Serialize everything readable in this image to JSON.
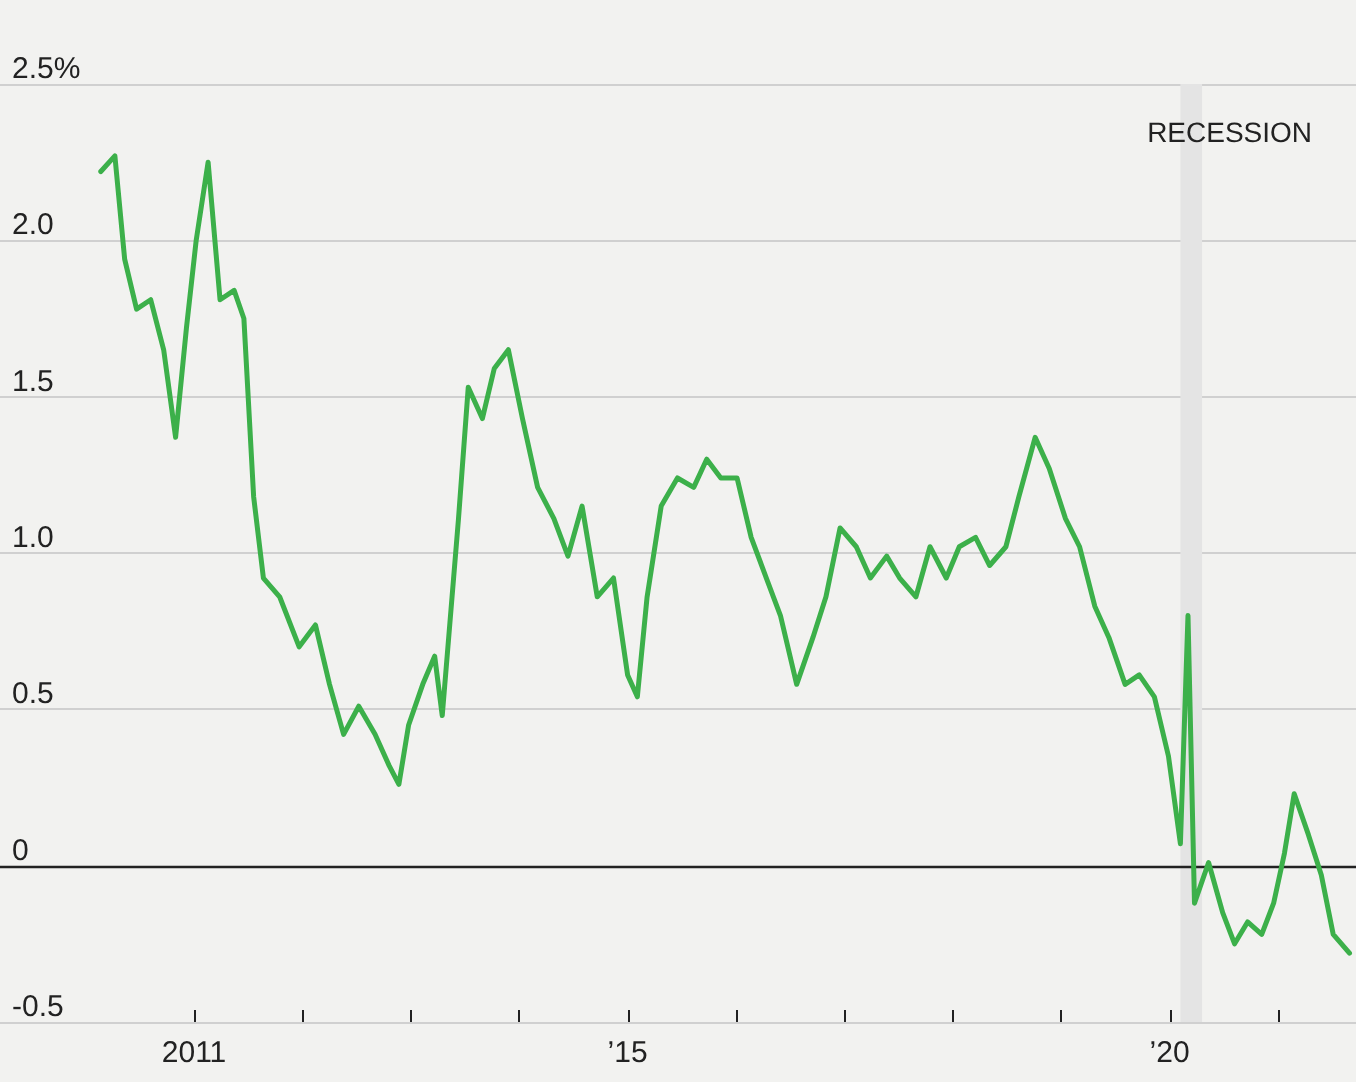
{
  "chart_data": {
    "type": "line",
    "x": [
      2010.14,
      2010.27,
      2010.36,
      2010.47,
      2010.6,
      2010.72,
      2010.83,
      2010.93,
      2011.02,
      2011.13,
      2011.24,
      2011.37,
      2011.46,
      2011.55,
      2011.64,
      2011.79,
      2011.97,
      2012.12,
      2012.25,
      2012.38,
      2012.52,
      2012.67,
      2012.8,
      2012.89,
      2012.98,
      2013.11,
      2013.22,
      2013.29,
      2013.44,
      2013.53,
      2013.66,
      2013.77,
      2013.9,
      2014.03,
      2014.17,
      2014.32,
      2014.45,
      2014.58,
      2014.72,
      2014.87,
      2015.0,
      2015.09,
      2015.18,
      2015.31,
      2015.46,
      2015.61,
      2015.73,
      2015.86,
      2016.01,
      2016.14,
      2016.28,
      2016.41,
      2016.56,
      2016.71,
      2016.83,
      2016.96,
      2017.11,
      2017.24,
      2017.39,
      2017.51,
      2017.66,
      2017.79,
      2017.94,
      2018.06,
      2018.21,
      2018.34,
      2018.49,
      2018.61,
      2018.76,
      2018.89,
      2019.04,
      2019.17,
      2019.31,
      2019.44,
      2019.59,
      2019.72,
      2019.86,
      2019.99,
      2020.1,
      2020.17,
      2020.23,
      2020.36,
      2020.49,
      2020.6,
      2020.72,
      2020.85,
      2020.96,
      2021.06,
      2021.15,
      2021.28,
      2021.4,
      2021.51,
      2021.66
    ],
    "series": [
      {
        "color": "#3cb04a",
        "values": [
          2.22,
          2.27,
          1.94,
          1.78,
          1.81,
          1.65,
          1.37,
          1.72,
          2.0,
          2.25,
          1.81,
          1.84,
          1.75,
          1.18,
          0.92,
          0.86,
          0.7,
          0.77,
          0.58,
          0.42,
          0.51,
          0.42,
          0.32,
          0.26,
          0.45,
          0.58,
          0.67,
          0.48,
          1.11,
          1.53,
          1.43,
          1.59,
          1.65,
          1.43,
          1.21,
          1.11,
          0.99,
          1.15,
          0.86,
          0.92,
          0.61,
          0.54,
          0.86,
          1.15,
          1.24,
          1.21,
          1.3,
          1.24,
          1.24,
          1.05,
          0.92,
          0.8,
          0.58,
          0.73,
          0.86,
          1.08,
          1.02,
          0.92,
          0.99,
          0.92,
          0.86,
          1.02,
          0.92,
          1.02,
          1.05,
          0.96,
          1.02,
          1.18,
          1.37,
          1.27,
          1.11,
          1.02,
          0.83,
          0.73,
          0.58,
          0.61,
          0.54,
          0.35,
          0.07,
          0.8,
          -0.12,
          0.01,
          -0.15,
          -0.25,
          -0.18,
          -0.22,
          -0.12,
          0.04,
          0.23,
          0.1,
          -0.03,
          -0.22,
          -0.28
        ]
      }
    ],
    "xlim": [
      2009.21,
      2021.72
    ],
    "xticks": [
      {
        "value": 2011,
        "label": "2011"
      },
      {
        "value": 2012,
        "label": null
      },
      {
        "value": 2013,
        "label": null
      },
      {
        "value": 2014,
        "label": null
      },
      {
        "value": 2015,
        "label": "’15"
      },
      {
        "value": 2016,
        "label": null
      },
      {
        "value": 2017,
        "label": null
      },
      {
        "value": 2018,
        "label": null
      },
      {
        "value": 2019,
        "label": null
      },
      {
        "value": 2020,
        "label": "’20"
      },
      {
        "value": 2021,
        "label": null
      }
    ],
    "ylim": [
      -0.5,
      2.5
    ],
    "yticks": [
      {
        "value": -0.5,
        "label": "-0.5"
      },
      0,
      {
        "value": 0.5,
        "label": "0.5"
      },
      {
        "value": 1.0,
        "label": "1.0"
      },
      {
        "value": 1.5,
        "label": "1.5"
      },
      {
        "value": 2.0,
        "label": "2.0"
      },
      {
        "value": 2.5,
        "label": "2.5%"
      }
    ],
    "grid": "y",
    "ref_lines": [
      {
        "axis": "y",
        "value": 0,
        "color": "#222222"
      }
    ],
    "bands": [
      {
        "axis": "x",
        "from": 2020.1,
        "to": 2020.3,
        "label": "RECESSION",
        "color": "#e4e4e4"
      }
    ],
    "marker": "none",
    "line_style": "solid"
  }
}
